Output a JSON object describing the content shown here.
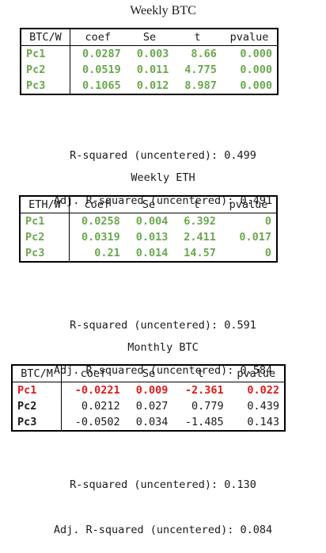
{
  "tables": [
    {
      "title": "Weekly BTC",
      "headers": [
        "BTC/W",
        "coef",
        "Se",
        "t",
        "pvalue"
      ],
      "rows": [
        [
          "Pc1",
          "0.0287",
          "0.003",
          "8.66",
          "0.000"
        ],
        [
          "Pc2",
          "0.0519",
          "0.011",
          "4.775",
          "0.000"
        ],
        [
          "Pc3",
          "0.1065",
          "0.012",
          "8.987",
          "0.000"
        ]
      ],
      "r_squared": "R-squared (uncentered): 0.499",
      "adj_r_squared": "Adj. R-squared (uncentered): 0.491"
    },
    {
      "title": "Weekly ETH",
      "headers": [
        "ETH/W",
        "coef",
        "Se",
        "t",
        "pvalue"
      ],
      "rows": [
        [
          "Pc1",
          "0.0258",
          "0.004",
          "6.392",
          "0"
        ],
        [
          "Pc2",
          "0.0319",
          "0.013",
          "2.411",
          "0.017"
        ],
        [
          "Pc3",
          "0.21",
          "0.014",
          "14.57",
          "0"
        ]
      ],
      "r_squared": "R-squared (uncentered): 0.591",
      "adj_r_squared": "Adj. R-squared (uncentered): 0.584"
    },
    {
      "title": "Monthly BTC",
      "headers": [
        "BTC/M",
        "coef",
        "Se",
        "t",
        "pvalue"
      ],
      "rows": [
        [
          "Pc1",
          "-0.0221",
          "0.009",
          "-2.361",
          "0.022"
        ],
        [
          "Pc2",
          "0.0212",
          "0.027",
          "0.779",
          "0.439"
        ],
        [
          "Pc3",
          "-0.0502",
          "0.034",
          "-1.485",
          "0.143"
        ]
      ],
      "r_squared": "R-squared (uncentered): 0.130",
      "adj_r_squared": "Adj. R-squared (uncentered): 0.084"
    }
  ],
  "colors": {
    "significant_green": "#6aa84f",
    "highlight_red": "#e01b1b"
  }
}
